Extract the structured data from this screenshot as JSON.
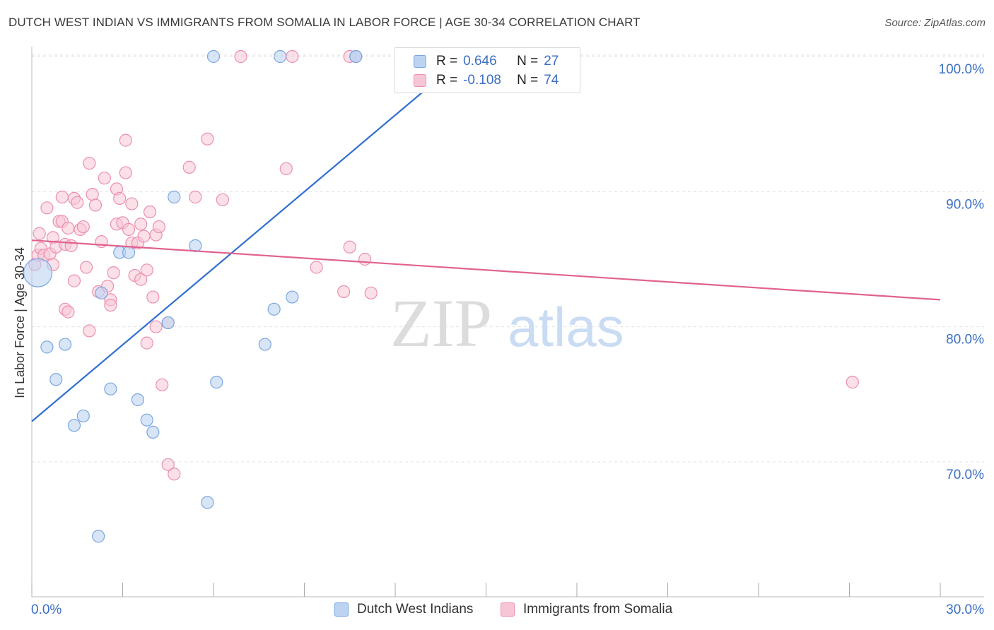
{
  "header": {
    "title": "DUTCH WEST INDIAN VS IMMIGRANTS FROM SOMALIA IN LABOR FORCE | AGE 30-34 CORRELATION CHART",
    "source": "Source: ZipAtlas.com"
  },
  "watermark": {
    "zip": "ZIP",
    "atlas": "atlas"
  },
  "legend": {
    "rows": [
      {
        "r_label": "R =",
        "r_value": "0.646",
        "n_label": "N =",
        "n_value": "27"
      },
      {
        "r_label": "R =",
        "r_value": "-0.108",
        "n_label": "N =",
        "n_value": "74"
      }
    ]
  },
  "bottom_legend": {
    "series1": "Dutch West Indians",
    "series2": "Immigrants from Somalia"
  },
  "colors": {
    "blue_fill": "#bcd3f2",
    "blue_stroke": "#7aa6e0",
    "blue_line": "#2f6fd0",
    "pink_fill": "#f7c6d6",
    "pink_stroke": "#eb8fae",
    "pink_line": "#e0628f",
    "tick_label": "#3b6fc4",
    "grid": "#e2e2e2"
  },
  "chart_data": {
    "type": "scatter",
    "title": "DUTCH WEST INDIAN VS IMMIGRANTS FROM SOMALIA IN LABOR FORCE | AGE 30-34 CORRELATION CHART",
    "xlabel": "",
    "ylabel": "In Labor Force | Age 30-34",
    "xlim": [
      0,
      30
    ],
    "ylim": [
      62,
      101
    ],
    "x_tick_labels": [
      "0.0%",
      "30.0%"
    ],
    "y_ticks": [
      70,
      80,
      90,
      100
    ],
    "y_tick_labels": [
      "70.0%",
      "80.0%",
      "90.0%",
      "100.0%"
    ],
    "grid": true,
    "legend_position": "top-center",
    "series": [
      {
        "name": "Dutch West Indians",
        "r": 0.646,
        "n": 27,
        "trend": {
          "x": [
            0,
            14.3
          ],
          "y": [
            73.0,
            100.0
          ]
        },
        "points": [
          {
            "x": 0.2,
            "y": 84.0,
            "big": true
          },
          {
            "x": 0.5,
            "y": 78.5
          },
          {
            "x": 1.1,
            "y": 78.7
          },
          {
            "x": 0.8,
            "y": 76.1
          },
          {
            "x": 1.4,
            "y": 72.7
          },
          {
            "x": 1.7,
            "y": 73.4
          },
          {
            "x": 2.2,
            "y": 64.5
          },
          {
            "x": 2.3,
            "y": 82.5
          },
          {
            "x": 2.6,
            "y": 75.4
          },
          {
            "x": 2.9,
            "y": 85.5
          },
          {
            "x": 3.2,
            "y": 85.5
          },
          {
            "x": 3.5,
            "y": 74.6
          },
          {
            "x": 3.8,
            "y": 73.1
          },
          {
            "x": 4.0,
            "y": 72.2
          },
          {
            "x": 4.5,
            "y": 80.3
          },
          {
            "x": 4.7,
            "y": 89.6
          },
          {
            "x": 5.4,
            "y": 86.0
          },
          {
            "x": 5.8,
            "y": 67.0
          },
          {
            "x": 6.1,
            "y": 75.9
          },
          {
            "x": 6.0,
            "y": 100.0
          },
          {
            "x": 8.2,
            "y": 100.0
          },
          {
            "x": 10.7,
            "y": 100.0
          },
          {
            "x": 7.7,
            "y": 78.7
          },
          {
            "x": 8.0,
            "y": 81.3
          },
          {
            "x": 8.6,
            "y": 82.2
          },
          {
            "x": 10.7,
            "y": 100.0
          },
          {
            "x": 13.0,
            "y": 100.0
          }
        ]
      },
      {
        "name": "Immigrants from Somalia",
        "r": -0.108,
        "n": 74,
        "trend": {
          "x": [
            0,
            30
          ],
          "y": [
            86.4,
            82.0
          ]
        },
        "points": [
          {
            "x": 0.1,
            "y": 84.6
          },
          {
            "x": 0.2,
            "y": 85.3
          },
          {
            "x": 0.25,
            "y": 86.9
          },
          {
            "x": 0.3,
            "y": 85.8
          },
          {
            "x": 0.4,
            "y": 85.3
          },
          {
            "x": 0.5,
            "y": 88.8
          },
          {
            "x": 0.6,
            "y": 85.4
          },
          {
            "x": 0.7,
            "y": 86.6
          },
          {
            "x": 0.7,
            "y": 84.6
          },
          {
            "x": 0.8,
            "y": 85.9
          },
          {
            "x": 0.9,
            "y": 87.8
          },
          {
            "x": 1.0,
            "y": 87.8
          },
          {
            "x": 1.0,
            "y": 89.6
          },
          {
            "x": 1.1,
            "y": 86.1
          },
          {
            "x": 1.1,
            "y": 81.3
          },
          {
            "x": 1.2,
            "y": 81.1
          },
          {
            "x": 1.2,
            "y": 87.3
          },
          {
            "x": 1.3,
            "y": 86.0
          },
          {
            "x": 1.4,
            "y": 83.4
          },
          {
            "x": 1.4,
            "y": 89.5
          },
          {
            "x": 1.5,
            "y": 89.2
          },
          {
            "x": 1.6,
            "y": 87.2
          },
          {
            "x": 1.7,
            "y": 87.4
          },
          {
            "x": 1.8,
            "y": 84.4
          },
          {
            "x": 1.9,
            "y": 92.1
          },
          {
            "x": 1.9,
            "y": 79.7
          },
          {
            "x": 2.0,
            "y": 89.8
          },
          {
            "x": 2.1,
            "y": 89.0
          },
          {
            "x": 2.2,
            "y": 82.6
          },
          {
            "x": 2.3,
            "y": 86.3
          },
          {
            "x": 2.4,
            "y": 91.0
          },
          {
            "x": 2.5,
            "y": 83.0
          },
          {
            "x": 2.6,
            "y": 82.0
          },
          {
            "x": 2.6,
            "y": 81.6
          },
          {
            "x": 2.7,
            "y": 84.0
          },
          {
            "x": 2.8,
            "y": 87.6
          },
          {
            "x": 2.8,
            "y": 90.2
          },
          {
            "x": 2.9,
            "y": 89.5
          },
          {
            "x": 3.0,
            "y": 87.7
          },
          {
            "x": 3.1,
            "y": 93.8
          },
          {
            "x": 3.1,
            "y": 91.4
          },
          {
            "x": 3.2,
            "y": 87.2
          },
          {
            "x": 3.3,
            "y": 86.2
          },
          {
            "x": 3.3,
            "y": 89.1
          },
          {
            "x": 3.4,
            "y": 83.8
          },
          {
            "x": 3.5,
            "y": 86.2
          },
          {
            "x": 3.6,
            "y": 83.5
          },
          {
            "x": 3.6,
            "y": 87.6
          },
          {
            "x": 3.7,
            "y": 86.7
          },
          {
            "x": 3.8,
            "y": 84.2
          },
          {
            "x": 3.8,
            "y": 78.8
          },
          {
            "x": 3.9,
            "y": 88.5
          },
          {
            "x": 4.0,
            "y": 82.2
          },
          {
            "x": 4.1,
            "y": 80.0
          },
          {
            "x": 4.1,
            "y": 86.8
          },
          {
            "x": 4.2,
            "y": 87.4
          },
          {
            "x": 4.3,
            "y": 75.7
          },
          {
            "x": 4.5,
            "y": 80.3
          },
          {
            "x": 4.5,
            "y": 69.8
          },
          {
            "x": 4.7,
            "y": 69.1
          },
          {
            "x": 5.2,
            "y": 91.8
          },
          {
            "x": 5.4,
            "y": 89.6
          },
          {
            "x": 5.8,
            "y": 93.9
          },
          {
            "x": 6.3,
            "y": 89.4
          },
          {
            "x": 6.9,
            "y": 100.0
          },
          {
            "x": 8.4,
            "y": 91.7
          },
          {
            "x": 8.6,
            "y": 100.0
          },
          {
            "x": 9.4,
            "y": 84.4
          },
          {
            "x": 10.3,
            "y": 82.6
          },
          {
            "x": 10.5,
            "y": 100.0
          },
          {
            "x": 10.7,
            "y": 100.0
          },
          {
            "x": 10.5,
            "y": 85.9
          },
          {
            "x": 11.0,
            "y": 85.0
          },
          {
            "x": 11.2,
            "y": 82.5
          },
          {
            "x": 27.1,
            "y": 75.9
          }
        ]
      }
    ]
  }
}
